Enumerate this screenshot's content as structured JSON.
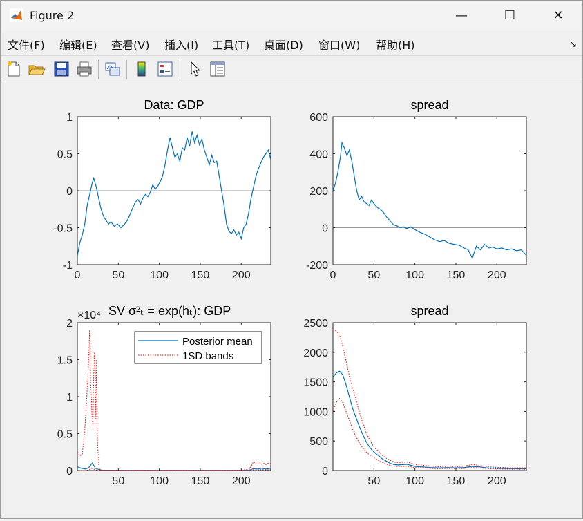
{
  "window": {
    "title": "Figure 2",
    "minimize_glyph": "—",
    "maximize_glyph": "☐",
    "close_glyph": "✕",
    "icon": "matlab-icon"
  },
  "menubar": {
    "items": [
      "文件(F)",
      "编辑(E)",
      "查看(V)",
      "插入(I)",
      "工具(T)",
      "桌面(D)",
      "窗口(W)",
      "帮助(H)"
    ],
    "dock_glyph": "↘"
  },
  "toolbar": {
    "icons": [
      "new-figure-icon",
      "open-file-icon",
      "save-icon",
      "print-icon",
      "link-plot-icon",
      "colorbar-icon",
      "legend-icon",
      "pointer-icon",
      "property-editor-icon"
    ]
  },
  "colors": {
    "series": "#0072bd",
    "bands": "#ff0000",
    "zero_line": "#999999"
  },
  "chart_data": [
    {
      "id": "gdp",
      "type": "line",
      "title": "Data: GDP",
      "xlim": [
        0,
        236
      ],
      "ylim": [
        -1,
        1
      ],
      "xticks": [
        0,
        50,
        100,
        150,
        200
      ],
      "yticks": [
        -1,
        -0.5,
        0,
        0.5,
        1
      ],
      "xtick_labels": [
        "0",
        "50",
        "100",
        "150",
        "200"
      ],
      "ytick_labels": [
        "-1",
        "-0.5",
        "0",
        "0.5",
        "1"
      ],
      "zero_line": true,
      "x": [
        0,
        3,
        6,
        9,
        12,
        15,
        18,
        20,
        23,
        26,
        29,
        32,
        35,
        38,
        41,
        45,
        49,
        53,
        57,
        61,
        65,
        68,
        71,
        74,
        77,
        80,
        83,
        86,
        89,
        92,
        95,
        98,
        101,
        104,
        107,
        110,
        113,
        116,
        119,
        122,
        125,
        128,
        131,
        134,
        137,
        140,
        143,
        146,
        149,
        152,
        155,
        158,
        161,
        164,
        167,
        170,
        173,
        176,
        179,
        182,
        185,
        188,
        191,
        194,
        197,
        200,
        203,
        206,
        209,
        212,
        215,
        218,
        221,
        224,
        227,
        230,
        233,
        236
      ],
      "y": [
        -0.88,
        -0.7,
        -0.6,
        -0.45,
        -0.2,
        -0.05,
        0.1,
        0.17,
        0.05,
        -0.1,
        -0.25,
        -0.35,
        -0.4,
        -0.45,
        -0.42,
        -0.48,
        -0.45,
        -0.5,
        -0.46,
        -0.4,
        -0.3,
        -0.22,
        -0.15,
        -0.12,
        -0.18,
        -0.1,
        -0.05,
        -0.08,
        -0.02,
        0.08,
        0.02,
        0.06,
        0.12,
        0.2,
        0.35,
        0.55,
        0.72,
        0.58,
        0.45,
        0.5,
        0.4,
        0.58,
        0.55,
        0.72,
        0.6,
        0.8,
        0.65,
        0.75,
        0.62,
        0.7,
        0.55,
        0.45,
        0.35,
        0.48,
        0.38,
        0.4,
        0.2,
        0.0,
        -0.2,
        -0.45,
        -0.55,
        -0.58,
        -0.53,
        -0.6,
        -0.56,
        -0.65,
        -0.5,
        -0.45,
        -0.3,
        -0.1,
        0.05,
        0.2,
        0.3,
        0.38,
        0.45,
        0.5,
        0.55,
        0.42
      ]
    },
    {
      "id": "spread",
      "type": "line",
      "title": "spread",
      "xlim": [
        0,
        236
      ],
      "ylim": [
        -200,
        600
      ],
      "xticks": [
        0,
        50,
        100,
        150,
        200
      ],
      "yticks": [
        -200,
        0,
        200,
        400,
        600
      ],
      "xtick_labels": [
        "0",
        "50",
        "100",
        "150",
        "200"
      ],
      "ytick_labels": [
        "-200",
        "0",
        "200",
        "400",
        "600"
      ],
      "zero_line": true,
      "x": [
        0,
        3,
        6,
        9,
        11,
        14,
        17,
        20,
        23,
        26,
        29,
        32,
        35,
        38,
        41,
        44,
        47,
        50,
        54,
        58,
        62,
        66,
        70,
        74,
        78,
        82,
        86,
        90,
        95,
        100,
        106,
        112,
        118,
        124,
        130,
        136,
        142,
        148,
        154,
        160,
        165,
        170,
        175,
        180,
        185,
        190,
        195,
        200,
        206,
        212,
        218,
        224,
        230,
        236
      ],
      "y": [
        200,
        240,
        300,
        380,
        460,
        430,
        390,
        420,
        360,
        280,
        200,
        150,
        170,
        140,
        130,
        120,
        150,
        130,
        110,
        100,
        80,
        55,
        35,
        15,
        10,
        0,
        5,
        -5,
        5,
        -10,
        -25,
        -35,
        -50,
        -65,
        -75,
        -70,
        -85,
        -90,
        -95,
        -110,
        -120,
        -165,
        -100,
        -120,
        -90,
        -110,
        -105,
        -115,
        -110,
        -120,
        -115,
        -125,
        -120,
        -150
      ]
    },
    {
      "id": "sv_gdp",
      "type": "line",
      "title": "SV σ²ₜ = exp(hₜ): GDP",
      "exponent_label": "×10⁴",
      "xlim": [
        0,
        236
      ],
      "ylim": [
        0,
        2
      ],
      "xticks": [
        50,
        100,
        150,
        200
      ],
      "yticks": [
        0,
        0.5,
        1,
        1.5,
        2
      ],
      "xtick_labels": [
        "50",
        "100",
        "150",
        "200"
      ],
      "ytick_labels": [
        "0",
        "0.5",
        "1",
        "1.5",
        "2"
      ],
      "legend": {
        "placement": "top-right",
        "entries": [
          "Posterior mean",
          "1SD bands"
        ]
      },
      "series": [
        {
          "name": "Posterior mean",
          "style": "solid",
          "color": "#0072bd",
          "x": [
            0,
            5,
            10,
            14,
            16,
            18,
            20,
            22,
            25,
            28,
            30,
            50,
            100,
            150,
            200,
            210,
            212,
            215,
            220,
            225,
            230,
            236
          ],
          "y": [
            0.05,
            0.03,
            0.02,
            0.04,
            0.07,
            0.1,
            0.07,
            0.03,
            0.02,
            0.01,
            0.005,
            0.003,
            0.003,
            0.003,
            0.003,
            0.005,
            0.015,
            0.025,
            0.02,
            0.03,
            0.02,
            0.03
          ]
        },
        {
          "name": "1SD bands",
          "style": "dotted",
          "color": "#ff0000",
          "x": [
            0,
            3,
            6,
            9,
            11,
            13,
            14,
            15,
            16,
            17,
            18,
            19,
            20,
            21,
            22,
            23,
            24,
            25,
            26,
            27,
            28,
            29,
            30,
            50,
            100,
            150,
            200,
            210,
            212,
            215,
            218,
            221,
            224,
            227,
            230,
            233,
            236
          ],
          "y": [
            0.25,
            0.2,
            0.22,
            0.55,
            0.9,
            1.3,
            1.6,
            1.9,
            1.2,
            1.0,
            0.7,
            0.6,
            1.3,
            1.6,
            0.7,
            1.5,
            0.5,
            0.3,
            0.1,
            0.02,
            0.01,
            0.005,
            0.003,
            0.002,
            0.002,
            0.002,
            0.002,
            0.02,
            0.06,
            0.12,
            0.09,
            0.11,
            0.08,
            0.1,
            0.08,
            0.1,
            0.09
          ]
        },
        {
          "name": "",
          "style": "dotted",
          "color": "#ff0000",
          "x": [
            0,
            5,
            10,
            14,
            16,
            18,
            20,
            22,
            25,
            28,
            30,
            50,
            100,
            150,
            200,
            210,
            212,
            215,
            220,
            225,
            230,
            236
          ],
          "y": [
            0.0,
            0.0,
            0.0,
            0.01,
            0.02,
            0.03,
            0.02,
            0.01,
            0.0,
            0.0,
            0.0,
            0.0,
            0.0,
            0.0,
            0.0,
            0.0,
            0.005,
            0.01,
            0.008,
            0.012,
            0.008,
            0.012
          ]
        }
      ]
    },
    {
      "id": "sv_spread",
      "type": "line",
      "title": "spread",
      "xlim": [
        0,
        236
      ],
      "ylim": [
        0,
        2500
      ],
      "xticks": [
        50,
        100,
        150,
        200
      ],
      "yticks": [
        0,
        500,
        1000,
        1500,
        2000,
        2500
      ],
      "xtick_labels": [
        "50",
        "100",
        "150",
        "200"
      ],
      "ytick_labels": [
        "0",
        "500",
        "1000",
        "1500",
        "2000",
        "2500"
      ],
      "series": [
        {
          "name": "Posterior mean",
          "style": "solid",
          "color": "#0072bd",
          "x": [
            0,
            4,
            8,
            12,
            16,
            20,
            24,
            28,
            32,
            36,
            40,
            44,
            48,
            52,
            56,
            60,
            65,
            70,
            75,
            80,
            85,
            90,
            95,
            100,
            110,
            120,
            130,
            140,
            150,
            160,
            170,
            180,
            190,
            200,
            210,
            220,
            236
          ],
          "y": [
            1580,
            1650,
            1680,
            1620,
            1450,
            1250,
            1050,
            900,
            750,
            620,
            500,
            410,
            340,
            290,
            250,
            200,
            160,
            120,
            100,
            95,
            100,
            105,
            90,
            70,
            60,
            50,
            45,
            50,
            45,
            50,
            70,
            60,
            40,
            40,
            35,
            30,
            30
          ]
        },
        {
          "name": "",
          "style": "dotted",
          "color": "#ff0000",
          "x": [
            0,
            4,
            8,
            12,
            16,
            20,
            24,
            28,
            32,
            36,
            40,
            44,
            48,
            52,
            56,
            60,
            65,
            70,
            75,
            80,
            85,
            90,
            95,
            100,
            110,
            120,
            130,
            140,
            150,
            160,
            170,
            180,
            190,
            200,
            210,
            220,
            236
          ],
          "y": [
            2380,
            2360,
            2300,
            2100,
            1850,
            1600,
            1400,
            1200,
            1000,
            820,
            660,
            540,
            440,
            370,
            320,
            260,
            210,
            170,
            140,
            135,
            140,
            145,
            125,
            100,
            90,
            75,
            65,
            70,
            65,
            75,
            100,
            85,
            60,
            55,
            50,
            45,
            45
          ]
        },
        {
          "name": "",
          "style": "dotted",
          "color": "#ff0000",
          "x": [
            0,
            4,
            8,
            12,
            16,
            20,
            24,
            28,
            32,
            36,
            40,
            44,
            48,
            52,
            56,
            60,
            65,
            70,
            75,
            80,
            85,
            90,
            95,
            100,
            110,
            120,
            130,
            140,
            150,
            160,
            170,
            180,
            190,
            200,
            210,
            220,
            236
          ],
          "y": [
            1000,
            1150,
            1220,
            1150,
            1000,
            850,
            700,
            580,
            470,
            390,
            320,
            270,
            230,
            200,
            170,
            140,
            110,
            85,
            70,
            65,
            70,
            72,
            62,
            50,
            42,
            35,
            30,
            35,
            30,
            35,
            50,
            42,
            28,
            28,
            24,
            20,
            20
          ]
        }
      ]
    }
  ]
}
